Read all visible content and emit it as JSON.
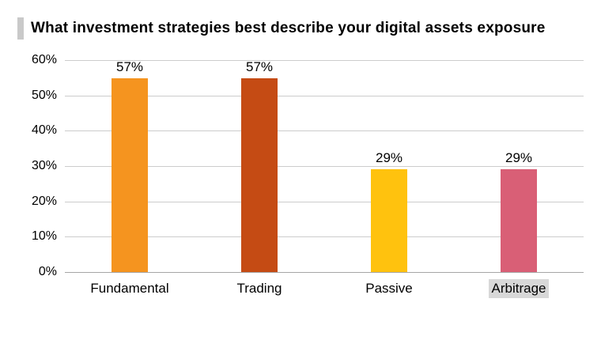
{
  "header": {
    "title": "What investment strategies best describe your digital assets exposure"
  },
  "chart_data": {
    "type": "bar",
    "title": "What investment strategies best describe your digital assets exposure",
    "categories": [
      "Fundamental",
      "Trading",
      "Passive",
      "Arbitrage"
    ],
    "values": [
      57,
      57,
      29,
      29
    ],
    "value_labels": [
      "57%",
      "57%",
      "29%",
      "29%"
    ],
    "bar_colors": [
      "#F5941F",
      "#C54B14",
      "#FFC20E",
      "#D95F76"
    ],
    "highlighted_category": "Arbitrage",
    "xlabel": "",
    "ylabel": "",
    "ylim": [
      0,
      60
    ],
    "yticks": [
      0,
      10,
      20,
      30,
      40,
      50,
      60
    ],
    "ytick_suffix": "%",
    "grid": true,
    "legend_position": "none"
  },
  "colors": {
    "title_accent": "#c9c9c9",
    "gridline": "#cccccc",
    "highlight_background": "#d8d8d8"
  }
}
